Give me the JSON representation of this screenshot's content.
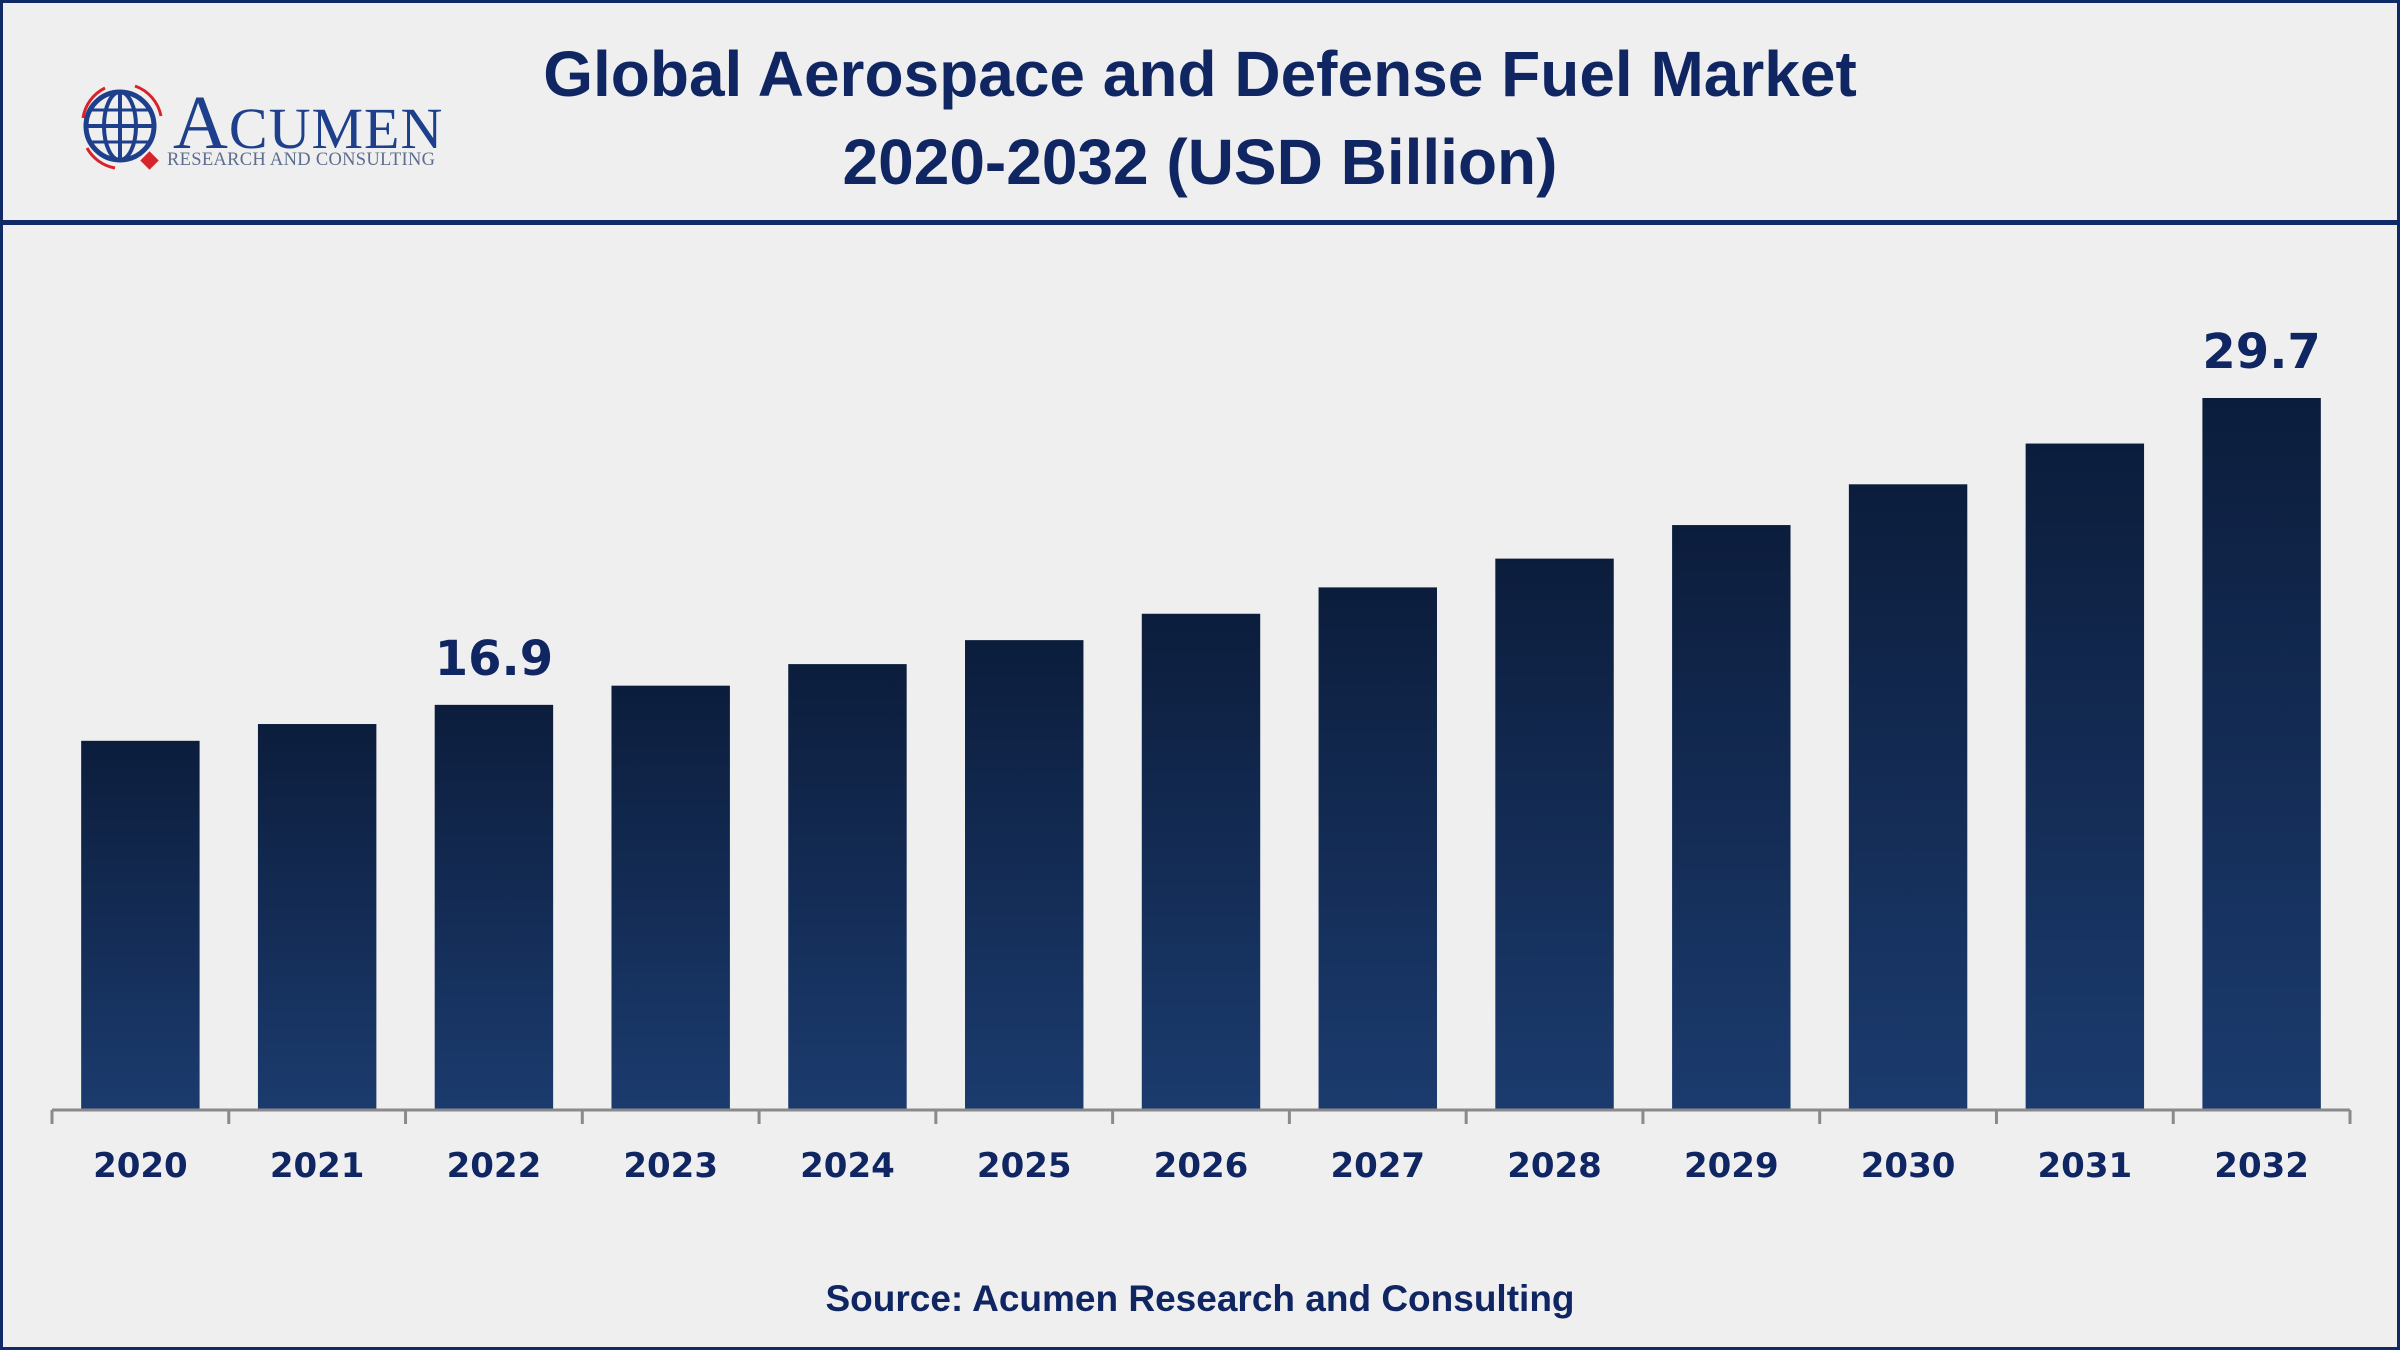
{
  "header": {
    "logo_name": "ACUMEN",
    "logo_tagline": "RESEARCH AND CONSULTING",
    "title_line1": "Global Aerospace and Defense Fuel Market",
    "title_line2": "2020-2032 (USD Billion)"
  },
  "footer": {
    "source": "Source: Acumen Research and Consulting"
  },
  "colors": {
    "frame": "#0f2a66",
    "text": "#102663",
    "bar_top": "#0c1d3c",
    "bar_bottom": "#1b3b6e",
    "axis": "#8a8a8a",
    "logo_blue": "#1d3f8c",
    "logo_red": "#d9232a"
  },
  "chart_data": {
    "type": "bar",
    "title": "Global Aerospace and Defense Fuel Market 2020-2032 (USD Billion)",
    "xlabel": "",
    "ylabel": "USD Billion",
    "categories": [
      "2020",
      "2021",
      "2022",
      "2023",
      "2024",
      "2025",
      "2026",
      "2027",
      "2028",
      "2029",
      "2030",
      "2031",
      "2032"
    ],
    "values": [
      15.4,
      16.1,
      16.9,
      17.7,
      18.6,
      19.6,
      20.7,
      21.8,
      23.0,
      24.4,
      26.1,
      27.8,
      29.7
    ],
    "data_labels": [
      {
        "category": "2022",
        "text": "16.9"
      },
      {
        "category": "2032",
        "text": "29.7"
      }
    ],
    "ylim": [
      0,
      29.7
    ],
    "grid": false,
    "legend": "none"
  }
}
